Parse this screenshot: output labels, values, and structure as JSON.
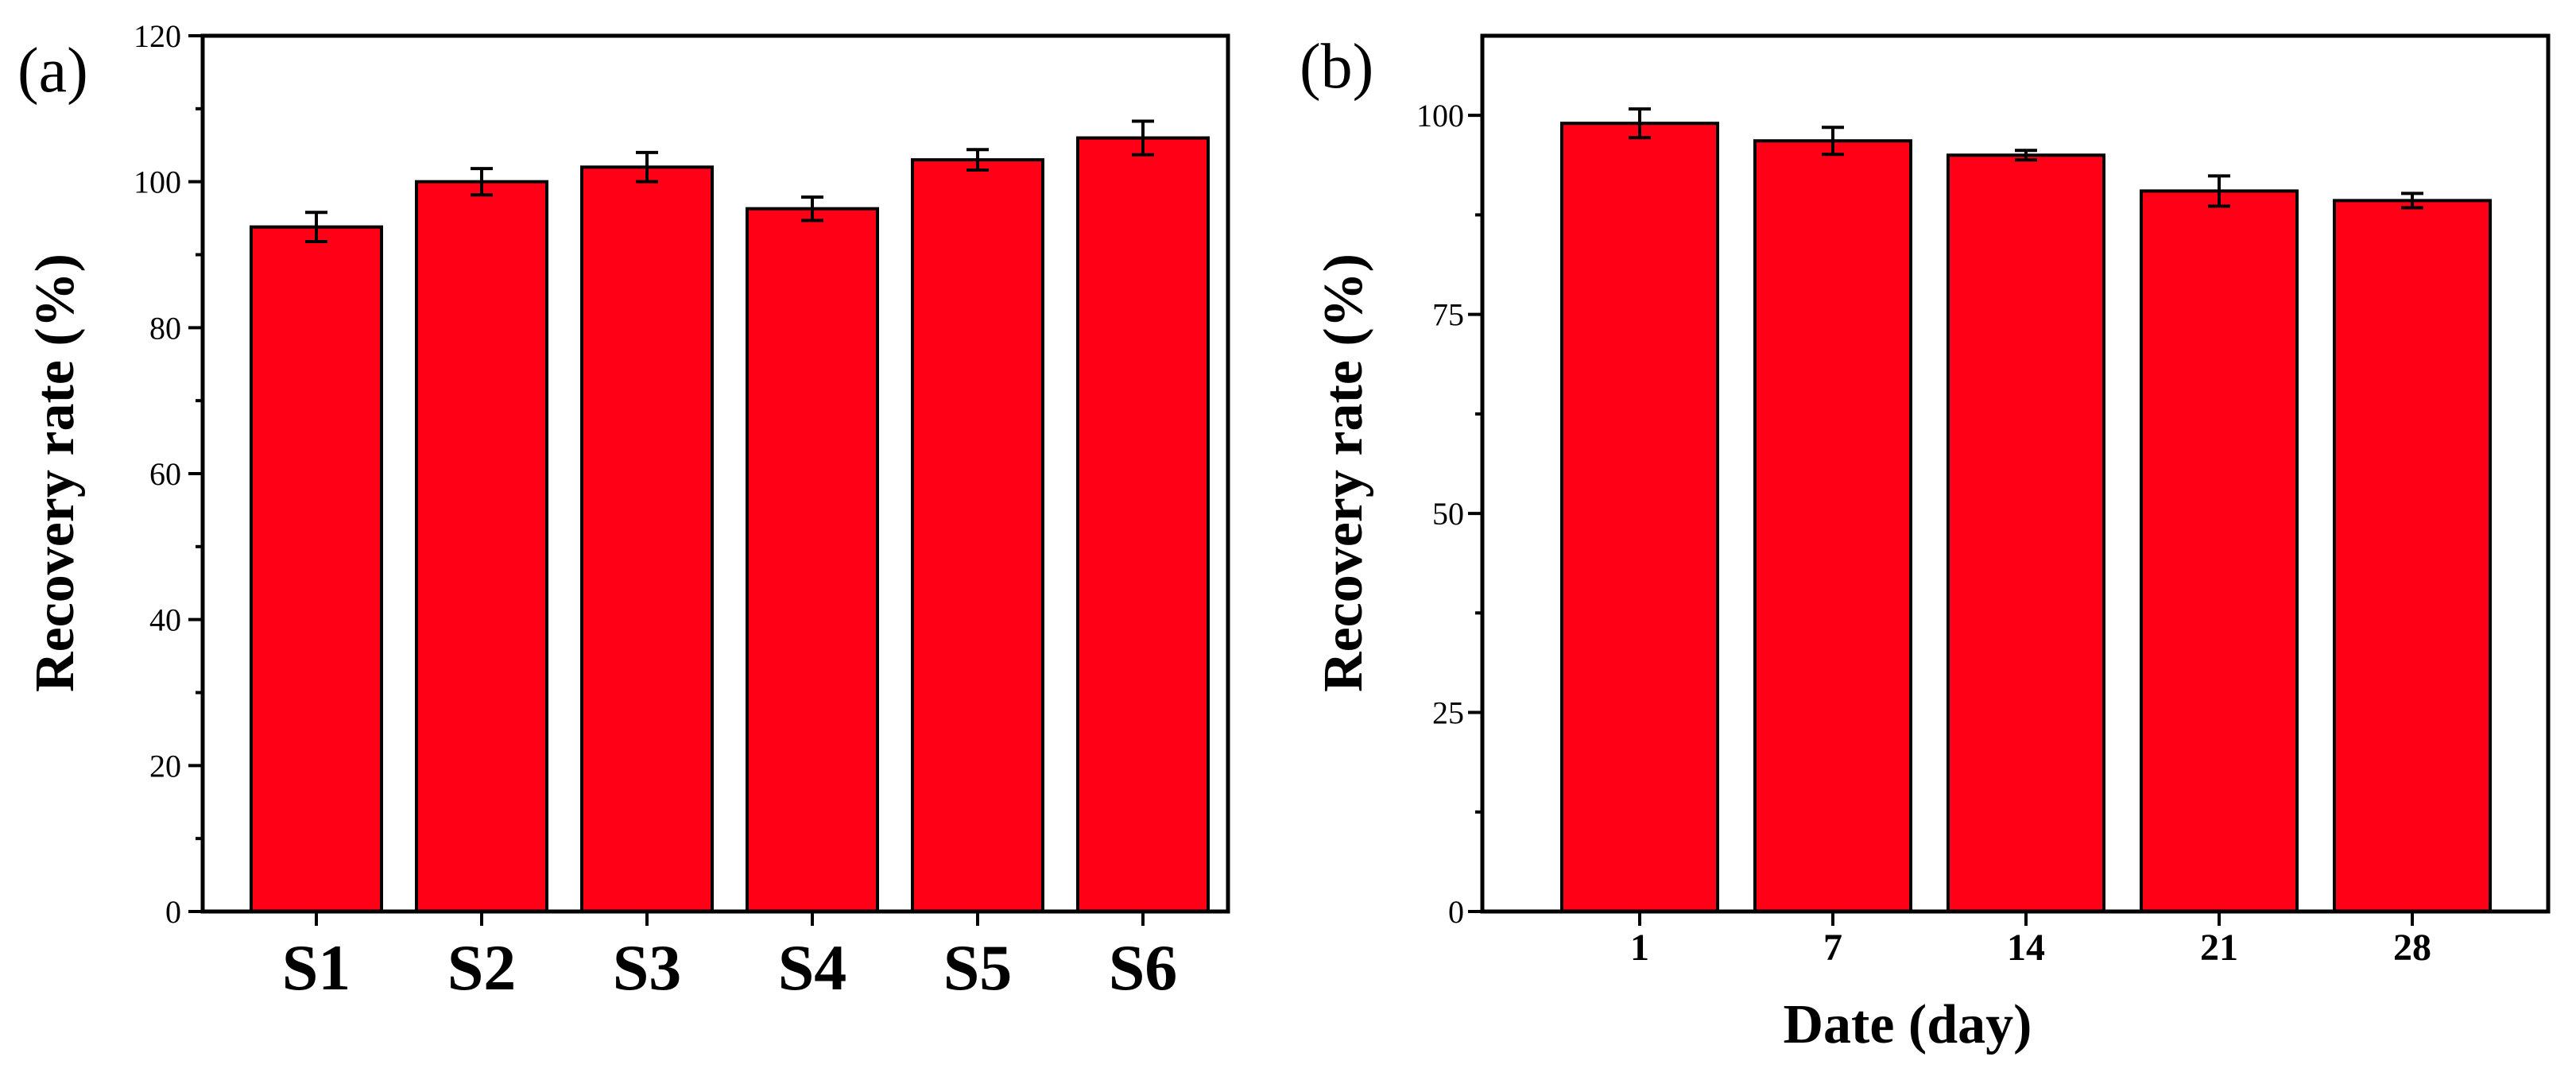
{
  "colors": {
    "bar_fill": "#ff0016",
    "axis": "#000000"
  },
  "chart_data": [
    {
      "type": "bar",
      "panel_label": "(a)",
      "title": "",
      "xlabel": "",
      "ylabel": "Recovery rate (%)",
      "ylim": [
        0,
        120
      ],
      "yticks": [
        0,
        20,
        40,
        60,
        80,
        100,
        120
      ],
      "categories": [
        "S1",
        "S2",
        "S3",
        "S4",
        "S5",
        "S6"
      ],
      "values": [
        93.8,
        100.0,
        102.0,
        96.3,
        103.0,
        106.0
      ],
      "errors": [
        2.0,
        1.8,
        2.0,
        1.6,
        1.4,
        2.3
      ],
      "grid": false
    },
    {
      "type": "bar",
      "panel_label": "(b)",
      "title": "",
      "xlabel": "Date (day)",
      "ylabel": "Recovery rate (%)",
      "ylim": [
        0,
        110
      ],
      "yticks": [
        0,
        25,
        50,
        75,
        100
      ],
      "categories": [
        "1",
        "7",
        "14",
        "21",
        "28"
      ],
      "values": [
        99.0,
        96.8,
        95.0,
        90.5,
        89.3
      ],
      "errors": [
        1.8,
        1.7,
        0.6,
        1.9,
        0.9
      ],
      "grid": false
    }
  ]
}
